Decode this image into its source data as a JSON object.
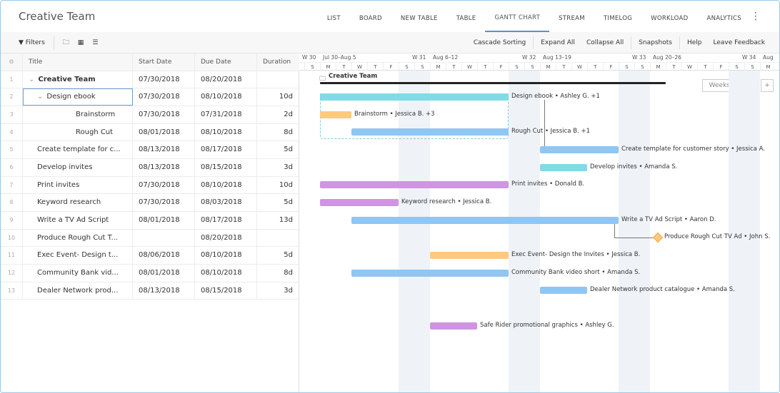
{
  "header": {
    "title": "Creative Team",
    "tabs": [
      "LIST",
      "BOARD",
      "NEW TABLE",
      "TABLE",
      "GANTT CHART",
      "STREAM",
      "TIMELOG",
      "WORKLOAD",
      "ANALYTICS"
    ],
    "active_tab": "GANTT CHART",
    "more": "⋮"
  },
  "toolbar": {
    "filters": "Filters",
    "right": [
      "Cascade Sorting",
      "Expand All",
      "Collapse All",
      "Snapshots",
      "Help",
      "Leave Feedback"
    ]
  },
  "grid": {
    "columns": [
      "Title",
      "Start Date",
      "Due Date",
      "Duration"
    ],
    "rows": [
      {
        "n": "1",
        "title": "Creative Team",
        "start": "07/30/2018",
        "due": "08/20/2018",
        "dur": "",
        "level": 0,
        "bold": true,
        "caret": "⌄"
      },
      {
        "n": "2",
        "title": "Design ebook",
        "start": "07/30/2018",
        "due": "08/10/2018",
        "dur": "10d",
        "level": 1,
        "caret": "⌄"
      },
      {
        "n": "3",
        "title": "Brainstorm",
        "start": "07/30/2018",
        "due": "07/31/2018",
        "dur": "2d",
        "level": 2
      },
      {
        "n": "4",
        "title": "Rough Cut",
        "start": "08/01/2018",
        "due": "08/10/2018",
        "dur": "8d",
        "level": 2
      },
      {
        "n": "5",
        "title": "Create template for c...",
        "start": "08/13/2018",
        "due": "08/17/2018",
        "dur": "5d",
        "level": 1
      },
      {
        "n": "6",
        "title": "Develop invites",
        "start": "08/13/2018",
        "due": "08/15/2018",
        "dur": "3d",
        "level": 1
      },
      {
        "n": "7",
        "title": "Print invites",
        "start": "07/30/2018",
        "due": "08/10/2018",
        "dur": "10d",
        "level": 1
      },
      {
        "n": "8",
        "title": "Keyword research",
        "start": "07/30/2018",
        "due": "08/03/2018",
        "dur": "5d",
        "level": 1
      },
      {
        "n": "9",
        "title": "Write a TV Ad Script",
        "start": "08/01/2018",
        "due": "08/17/2018",
        "dur": "13d",
        "level": 1
      },
      {
        "n": "10",
        "title": "Produce Rough Cut T...",
        "start": "",
        "due": "08/20/2018",
        "dur": "",
        "level": 1
      },
      {
        "n": "11",
        "title": "Exec Event- Design t...",
        "start": "08/06/2018",
        "due": "08/10/2018",
        "dur": "5d",
        "level": 1
      },
      {
        "n": "12",
        "title": "Community Bank vid...",
        "start": "08/01/2018",
        "due": "08/10/2018",
        "dur": "8d",
        "level": 1
      },
      {
        "n": "13",
        "title": "Dealer Network prod...",
        "start": "08/13/2018",
        "due": "08/15/2018",
        "dur": "3d",
        "level": 1
      }
    ]
  },
  "gantt": {
    "weeks": [
      {
        "num": "W 30",
        "range": ""
      },
      {
        "num": "W 31",
        "range": "Jul 30–Aug 5"
      },
      {
        "num": "W 32",
        "range": "Aug 6–12"
      },
      {
        "num": "W 33",
        "range": "Aug 13–19"
      },
      {
        "num": "W 34",
        "range": "Aug 20–26"
      },
      {
        "num": "",
        "range": "Aug"
      }
    ],
    "day_letters": [
      "S",
      "M",
      "T",
      "W",
      "T",
      "F",
      "S",
      "S",
      "M",
      "T",
      "W",
      "T",
      "F",
      "S",
      "S",
      "M",
      "T",
      "W",
      "T",
      "F",
      "S",
      "S",
      "M",
      "T",
      "W",
      "T",
      "F",
      "S",
      "S",
      "M"
    ],
    "summary": {
      "label": "Creative Team",
      "start": 0,
      "end": 22
    },
    "zoom": {
      "scale": "Weeks ▾",
      "minus": "−",
      "plus": "+"
    },
    "colors": {
      "cyan": "#7fdbe6",
      "orange": "#ffc980",
      "blue": "#8fc6f4",
      "purple": "#cf95e0"
    },
    "tasks": [
      {
        "row": 2,
        "start": 0,
        "end": 12,
        "color": "cyan",
        "label": "Design ebook • Ashley G. +1"
      },
      {
        "row": 3,
        "start": 0,
        "end": 2,
        "color": "orange",
        "label": "Brainstorm • Jessica B. +3"
      },
      {
        "row": 4,
        "start": 2,
        "end": 12,
        "color": "blue",
        "label": "Rough Cut • Jessica B. +1"
      },
      {
        "row": 5,
        "start": 14,
        "end": 19,
        "color": "blue",
        "label": "Create template for customer story • Jessica A."
      },
      {
        "row": 6,
        "start": 14,
        "end": 17,
        "color": "cyan",
        "label": "Develop invites • Amanda S."
      },
      {
        "row": 7,
        "start": 0,
        "end": 12,
        "color": "purple",
        "label": "Print invites • Donald B."
      },
      {
        "row": 8,
        "start": 0,
        "end": 5,
        "color": "purple",
        "label": "Keyword research • Jessica B."
      },
      {
        "row": 9,
        "start": 2,
        "end": 19,
        "color": "blue",
        "label": "Write a TV Ad Script • Aaron D."
      },
      {
        "row": 10,
        "start": 21,
        "end": 21,
        "color": "orange",
        "milestone": true,
        "label": "Produce Rough Cut TV Ad • John S."
      },
      {
        "row": 11,
        "start": 7,
        "end": 12,
        "color": "orange",
        "label": "Exec Event- Design the Invites • Jessica B."
      },
      {
        "row": 12,
        "start": 2,
        "end": 12,
        "color": "blue",
        "label": "Community Bank video short • Amanda S."
      },
      {
        "row": 13,
        "start": 14,
        "end": 17,
        "color": "blue",
        "label": "Dealer Network product catalogue • Amanda S."
      },
      {
        "row": 15,
        "start": 7,
        "end": 10,
        "color": "purple",
        "label": "Safe Rider promotional graphics • Ashley G."
      }
    ]
  }
}
